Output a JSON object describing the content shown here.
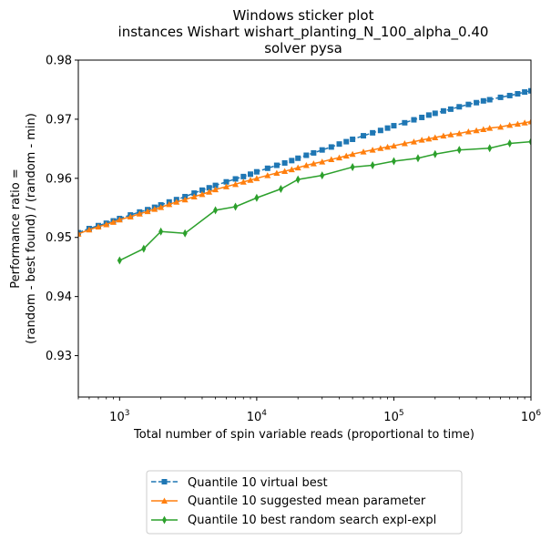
{
  "chart_data": {
    "type": "line",
    "title_lines": [
      "Windows sticker plot",
      "instances Wishart wishart_planting_N_100_alpha_0.40",
      "solver pysa"
    ],
    "xlabel": "Total number of spin variable reads (proportional to time)",
    "ylabel_lines": [
      "Performance ratio =",
      "(random - best found) / (random - min)"
    ],
    "xscale": "log",
    "xlim": [
      500,
      1000000
    ],
    "ylim": [
      0.923,
      0.98
    ],
    "yticks": [
      0.93,
      0.94,
      0.95,
      0.96,
      0.97,
      0.98
    ],
    "ytick_labels": [
      "0.93",
      "0.94",
      "0.95",
      "0.96",
      "0.97",
      "0.98"
    ],
    "xticks": [
      1000,
      10000,
      100000,
      1000000
    ],
    "xtick_labels": [
      {
        "base": "10",
        "exp": "3"
      },
      {
        "base": "10",
        "exp": "4"
      },
      {
        "base": "10",
        "exp": "5"
      },
      {
        "base": "10",
        "exp": "6"
      }
    ],
    "grid": false,
    "legend_position": "below plot",
    "series": [
      {
        "name": "Quantile 10 virtual best",
        "color": "#1f77b4",
        "linestyle": "dashed",
        "marker": "square",
        "x": [
          500,
          600,
          700,
          800,
          900,
          1000,
          1200,
          1400,
          1600,
          1800,
          2000,
          2300,
          2600,
          3000,
          3500,
          4000,
          4500,
          5000,
          6000,
          7000,
          8000,
          9000,
          10000,
          12000,
          14000,
          16000,
          18000,
          20000,
          23000,
          26000,
          30000,
          35000,
          40000,
          45000,
          50000,
          60000,
          70000,
          80000,
          90000,
          100000,
          120000,
          140000,
          160000,
          180000,
          200000,
          230000,
          260000,
          300000,
          350000,
          400000,
          450000,
          500000,
          600000,
          700000,
          800000,
          900000,
          1000000
        ],
        "y": [
          0.9508,
          0.9515,
          0.952,
          0.9524,
          0.9528,
          0.9532,
          0.9538,
          0.9543,
          0.9547,
          0.9551,
          0.9555,
          0.956,
          0.9564,
          0.9569,
          0.9575,
          0.958,
          0.9584,
          0.9588,
          0.9594,
          0.9599,
          0.9603,
          0.9607,
          0.9611,
          0.9617,
          0.9622,
          0.9626,
          0.963,
          0.9634,
          0.9639,
          0.9643,
          0.9648,
          0.9653,
          0.9658,
          0.9662,
          0.9666,
          0.9672,
          0.9677,
          0.9681,
          0.9685,
          0.9689,
          0.9694,
          0.9699,
          0.9703,
          0.9707,
          0.971,
          0.9714,
          0.9717,
          0.9721,
          0.9725,
          0.9728,
          0.9731,
          0.9733,
          0.9737,
          0.974,
          0.9743,
          0.9746,
          0.9748
        ]
      },
      {
        "name": "Quantile 10 suggested mean parameter",
        "color": "#ff7f0e",
        "linestyle": "solid",
        "marker": "triangle",
        "x": [
          500,
          600,
          700,
          800,
          900,
          1000,
          1200,
          1400,
          1600,
          1800,
          2000,
          2300,
          2600,
          3000,
          3500,
          4000,
          4500,
          5000,
          6000,
          7000,
          8000,
          9000,
          10000,
          12000,
          14000,
          16000,
          18000,
          20000,
          23000,
          26000,
          30000,
          35000,
          40000,
          45000,
          50000,
          60000,
          70000,
          80000,
          90000,
          100000,
          120000,
          140000,
          160000,
          180000,
          200000,
          230000,
          260000,
          300000,
          350000,
          400000,
          450000,
          500000,
          600000,
          700000,
          800000,
          900000,
          1000000
        ],
        "y": [
          0.9506,
          0.9513,
          0.9518,
          0.9522,
          0.9526,
          0.953,
          0.9535,
          0.954,
          0.9544,
          0.9548,
          0.9551,
          0.9556,
          0.956,
          0.9564,
          0.9569,
          0.9573,
          0.9577,
          0.9581,
          0.9586,
          0.959,
          0.9594,
          0.9597,
          0.96,
          0.9605,
          0.9609,
          0.9612,
          0.9615,
          0.9618,
          0.9622,
          0.9625,
          0.9628,
          0.9632,
          0.9635,
          0.9638,
          0.9641,
          0.9645,
          0.9648,
          0.9651,
          0.9653,
          0.9655,
          0.9659,
          0.9662,
          0.9665,
          0.9667,
          0.9669,
          0.9672,
          0.9674,
          0.9676,
          0.9679,
          0.9681,
          0.9683,
          0.9685,
          0.9687,
          0.969,
          0.9692,
          0.9694,
          0.9696
        ]
      },
      {
        "name": "Quantile 10  best random search expl-expl",
        "color": "#2ca02c",
        "linestyle": "solid",
        "marker": "thin_diamond",
        "x": [
          1000,
          1500,
          2000,
          3000,
          5000,
          7000,
          10000,
          15000,
          20000,
          30000,
          50000,
          70000,
          100000,
          150000,
          200000,
          300000,
          500000,
          700000,
          1000000
        ],
        "y": [
          0.9461,
          0.9481,
          0.951,
          0.9507,
          0.9546,
          0.9552,
          0.9567,
          0.9582,
          0.9598,
          0.9605,
          0.9619,
          0.9622,
          0.9629,
          0.9634,
          0.9641,
          0.9648,
          0.9651,
          0.9659,
          0.9662
        ]
      }
    ]
  }
}
